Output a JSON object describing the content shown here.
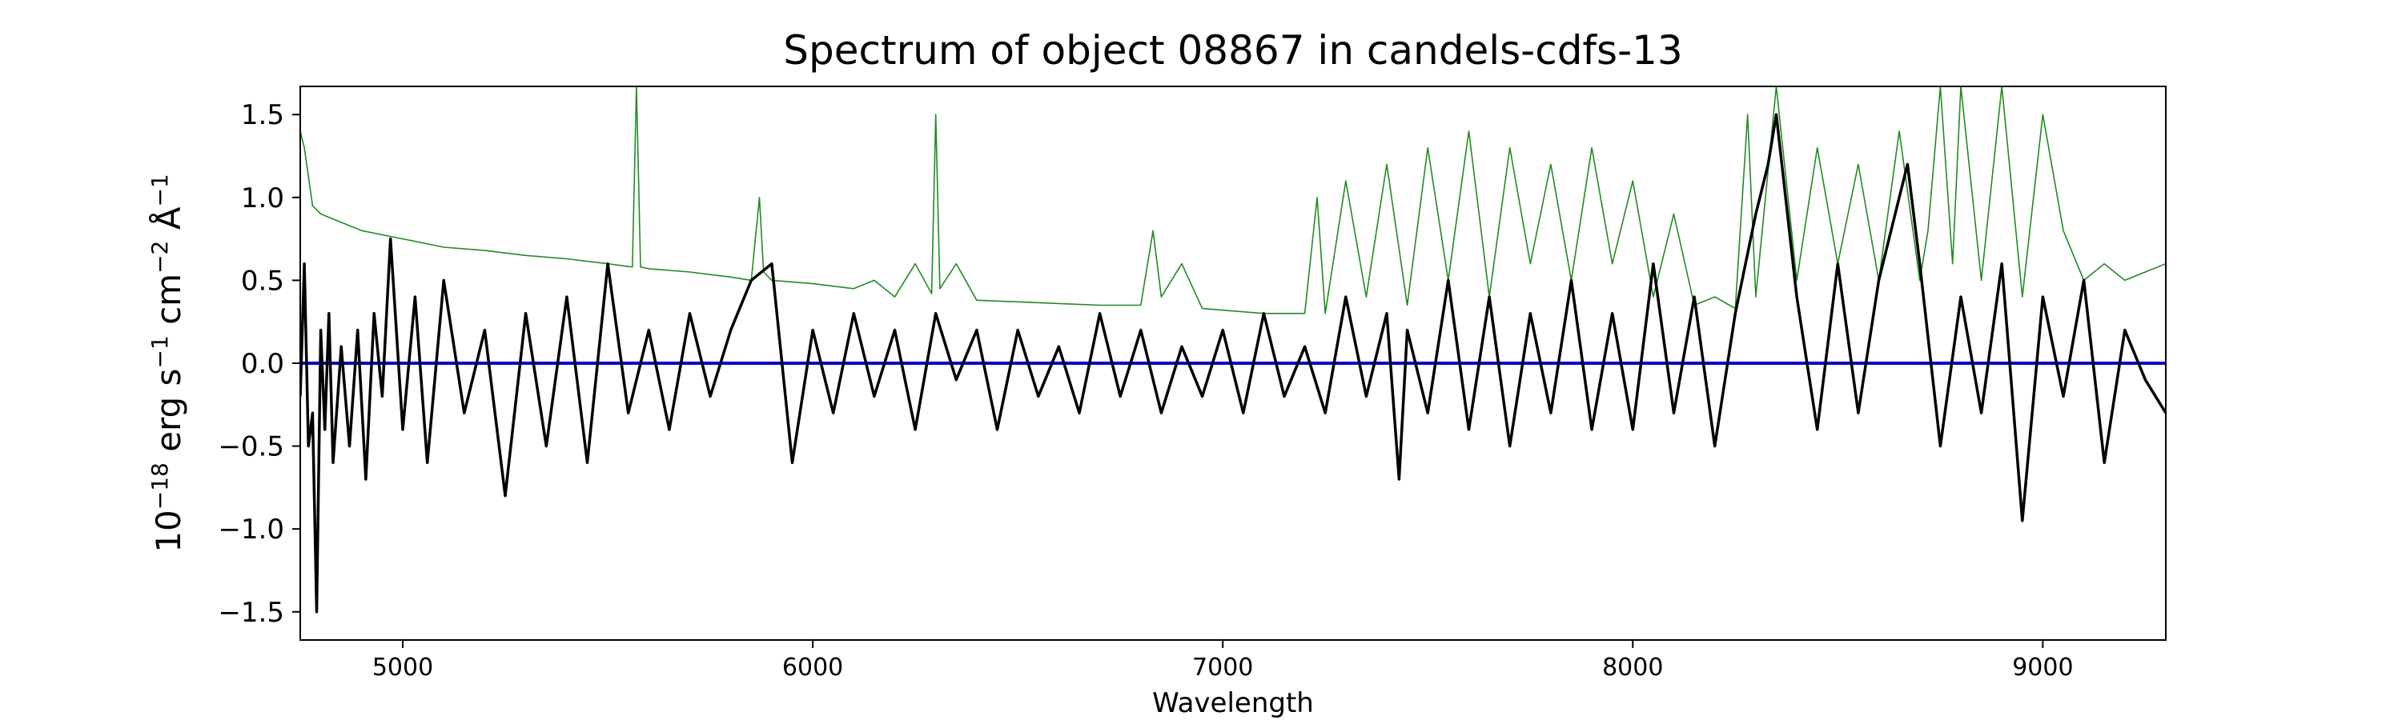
{
  "chart_data": {
    "type": "line",
    "title": "Spectrum of object 08867 in candels-cdfs-13",
    "xlabel": "Wavelength",
    "ylabel_parts": {
      "base": "10",
      "exp_base": "−18",
      "erg": " erg s",
      "exp_s": "−1",
      "cm": " cm",
      "exp_cm": "−2",
      "ang": " Å",
      "exp_ang": "−1"
    },
    "xlim": [
      4750,
      9300
    ],
    "ylim": [
      -1.67,
      1.67
    ],
    "xticks": [
      5000,
      6000,
      7000,
      8000,
      9000
    ],
    "xtick_labels": [
      "5000",
      "6000",
      "7000",
      "8000",
      "9000"
    ],
    "yticks": [
      1.5,
      1.0,
      0.5,
      0.0,
      -0.5,
      -1.0,
      -1.5
    ],
    "ytick_labels": [
      "1.5",
      "1.0",
      "0.5",
      "0.0",
      "−0.5",
      "−1.0",
      "−1.5"
    ],
    "colors": {
      "flux": "#000000",
      "error": "#228b22",
      "zero": "#0000cc"
    },
    "series": [
      {
        "role": "flux",
        "x": [
          4750,
          4760,
          4770,
          4780,
          4790,
          4800,
          4810,
          4820,
          4830,
          4850,
          4870,
          4890,
          4910,
          4930,
          4950,
          4970,
          5000,
          5030,
          5060,
          5100,
          5150,
          5200,
          5250,
          5300,
          5350,
          5400,
          5450,
          5500,
          5550,
          5600,
          5650,
          5700,
          5750,
          5800,
          5850,
          5900,
          5950,
          6000,
          6050,
          6100,
          6150,
          6200,
          6250,
          6300,
          6350,
          6400,
          6450,
          6500,
          6550,
          6600,
          6650,
          6700,
          6750,
          6800,
          6850,
          6900,
          6950,
          7000,
          7050,
          7100,
          7150,
          7200,
          7250,
          7300,
          7350,
          7400,
          7430,
          7450,
          7500,
          7550,
          7600,
          7650,
          7700,
          7750,
          7800,
          7850,
          7900,
          7950,
          8000,
          8050,
          8100,
          8150,
          8200,
          8250,
          8300,
          8330,
          8350,
          8400,
          8450,
          8500,
          8550,
          8600,
          8650,
          8670,
          8700,
          8750,
          8800,
          8850,
          8900,
          8950,
          9000,
          9050,
          9100,
          9150,
          9200,
          9250,
          9300
        ],
        "y": [
          -0.2,
          0.6,
          -0.5,
          -0.3,
          -1.5,
          0.2,
          -0.4,
          0.3,
          -0.6,
          0.1,
          -0.5,
          0.2,
          -0.7,
          0.3,
          -0.2,
          0.75,
          -0.4,
          0.4,
          -0.6,
          0.5,
          -0.3,
          0.2,
          -0.8,
          0.3,
          -0.5,
          0.4,
          -0.6,
          0.6,
          -0.3,
          0.2,
          -0.4,
          0.3,
          -0.2,
          0.2,
          0.5,
          0.6,
          -0.6,
          0.2,
          -0.3,
          0.3,
          -0.2,
          0.2,
          -0.4,
          0.3,
          -0.1,
          0.2,
          -0.4,
          0.2,
          -0.2,
          0.1,
          -0.3,
          0.3,
          -0.2,
          0.2,
          -0.3,
          0.1,
          -0.2,
          0.2,
          -0.3,
          0.3,
          -0.2,
          0.1,
          -0.3,
          0.4,
          -0.2,
          0.3,
          -0.7,
          0.2,
          -0.3,
          0.5,
          -0.4,
          0.4,
          -0.5,
          0.3,
          -0.3,
          0.5,
          -0.4,
          0.3,
          -0.4,
          0.6,
          -0.3,
          0.4,
          -0.5,
          0.3,
          0.9,
          1.2,
          1.5,
          0.4,
          -0.4,
          0.6,
          -0.3,
          0.5,
          1.0,
          1.2,
          0.6,
          -0.5,
          0.4,
          -0.3,
          0.6,
          -0.95,
          0.4,
          -0.2,
          0.5,
          -0.6,
          0.2,
          -0.1,
          -0.3
        ]
      },
      {
        "role": "error",
        "x": [
          4750,
          4760,
          4780,
          4800,
          4850,
          4900,
          5000,
          5100,
          5200,
          5300,
          5400,
          5500,
          5560,
          5570,
          5580,
          5600,
          5700,
          5800,
          5850,
          5870,
          5880,
          5900,
          6000,
          6100,
          6150,
          6200,
          6250,
          6290,
          6300,
          6310,
          6350,
          6400,
          6500,
          6600,
          6700,
          6800,
          6830,
          6850,
          6900,
          6950,
          7000,
          7100,
          7200,
          7230,
          7250,
          7300,
          7350,
          7400,
          7450,
          7500,
          7550,
          7600,
          7650,
          7700,
          7750,
          7800,
          7850,
          7900,
          7950,
          8000,
          8050,
          8100,
          8150,
          8200,
          8250,
          8280,
          8300,
          8350,
          8400,
          8450,
          8500,
          8550,
          8600,
          8650,
          8700,
          8720,
          8750,
          8780,
          8800,
          8850,
          8900,
          8950,
          9000,
          9050,
          9100,
          9150,
          9200,
          9250,
          9300
        ],
        "y": [
          1.4,
          1.3,
          0.95,
          0.9,
          0.85,
          0.8,
          0.75,
          0.7,
          0.68,
          0.65,
          0.63,
          0.6,
          0.58,
          1.67,
          0.58,
          0.57,
          0.55,
          0.52,
          0.5,
          1.0,
          0.55,
          0.5,
          0.48,
          0.45,
          0.5,
          0.4,
          0.6,
          0.42,
          1.5,
          0.45,
          0.6,
          0.38,
          0.37,
          0.36,
          0.35,
          0.35,
          0.8,
          0.4,
          0.6,
          0.33,
          0.32,
          0.3,
          0.3,
          1.0,
          0.3,
          1.1,
          0.4,
          1.2,
          0.35,
          1.3,
          0.5,
          1.4,
          0.4,
          1.3,
          0.6,
          1.2,
          0.5,
          1.3,
          0.6,
          1.1,
          0.4,
          0.9,
          0.35,
          0.4,
          0.33,
          1.5,
          0.4,
          1.67,
          0.5,
          1.3,
          0.6,
          1.2,
          0.5,
          1.4,
          0.5,
          0.8,
          1.67,
          0.6,
          1.67,
          0.5,
          1.67,
          0.4,
          1.5,
          0.8,
          0.5,
          0.6,
          0.5,
          0.55,
          0.6
        ]
      },
      {
        "role": "zero",
        "x": [
          4750,
          9300
        ],
        "y": [
          0,
          0
        ]
      }
    ]
  }
}
